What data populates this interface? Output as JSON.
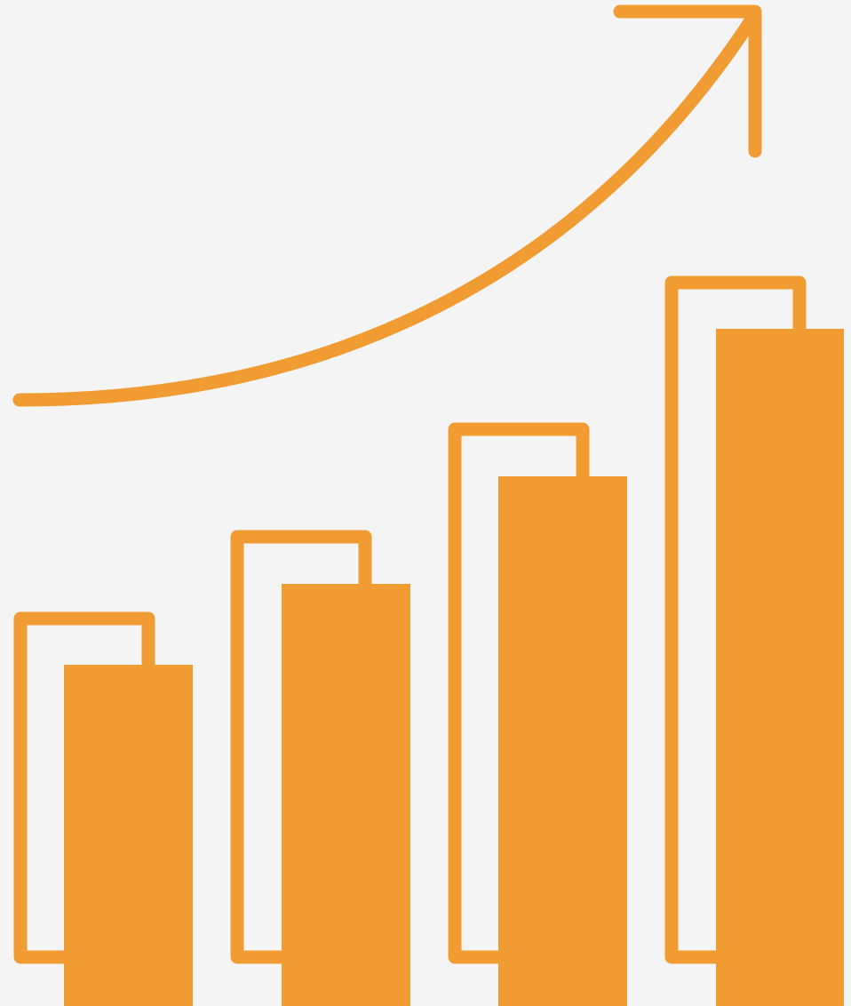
{
  "illustration": {
    "icon": "growth-bar-chart-with-rising-arrow",
    "colors": {
      "background": "#f4f4f4",
      "accent": "#f19c33"
    },
    "bars": [
      {
        "name": "bar-1",
        "level": 0.34
      },
      {
        "name": "bar-2",
        "level": 0.42
      },
      {
        "name": "bar-3",
        "level": 0.53
      },
      {
        "name": "bar-4",
        "level": 0.68
      }
    ],
    "trend": "rising"
  }
}
